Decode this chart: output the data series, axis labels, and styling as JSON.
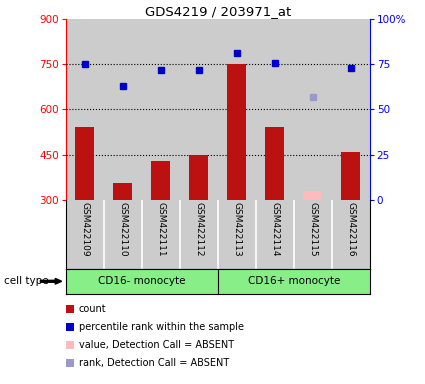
{
  "title": "GDS4219 / 203971_at",
  "samples": [
    "GSM422109",
    "GSM422110",
    "GSM422111",
    "GSM422112",
    "GSM422113",
    "GSM422114",
    "GSM422115",
    "GSM422116"
  ],
  "bar_values": [
    540,
    355,
    430,
    448,
    750,
    540,
    null,
    460
  ],
  "bar_absent_values": [
    null,
    null,
    null,
    null,
    null,
    null,
    330,
    null
  ],
  "rank_values": [
    75,
    63,
    72,
    72,
    81,
    76,
    null,
    73
  ],
  "rank_absent_values": [
    null,
    null,
    null,
    null,
    null,
    null,
    57,
    null
  ],
  "ylim_left": [
    300,
    900
  ],
  "ylim_right": [
    0,
    100
  ],
  "yticks_left": [
    300,
    450,
    600,
    750,
    900
  ],
  "yticks_right": [
    0,
    25,
    50,
    75,
    100
  ],
  "ytick_labels_right": [
    "0",
    "25",
    "50",
    "75",
    "100%"
  ],
  "hlines": [
    450,
    600,
    750
  ],
  "bar_color": "#bb1111",
  "bar_absent_color": "#ffbbbb",
  "rank_color": "#0000cc",
  "rank_absent_color": "#9999cc",
  "cell_type_groups": [
    {
      "label": "CD16- monocyte",
      "start": 0,
      "end": 3
    },
    {
      "label": "CD16+ monocyte",
      "start": 4,
      "end": 7
    }
  ],
  "legend_items": [
    {
      "label": "count",
      "color": "#bb1111",
      "type": "bar"
    },
    {
      "label": "percentile rank within the sample",
      "color": "#0000cc",
      "type": "point"
    },
    {
      "label": "value, Detection Call = ABSENT",
      "color": "#ffbbbb",
      "type": "bar"
    },
    {
      "label": "rank, Detection Call = ABSENT",
      "color": "#9999cc",
      "type": "point"
    }
  ],
  "cell_type_label": "cell type",
  "cell_type_bg": "#88ee88",
  "sample_bg": "#cccccc",
  "plot_bg": "#ffffff",
  "bar_width": 0.5
}
